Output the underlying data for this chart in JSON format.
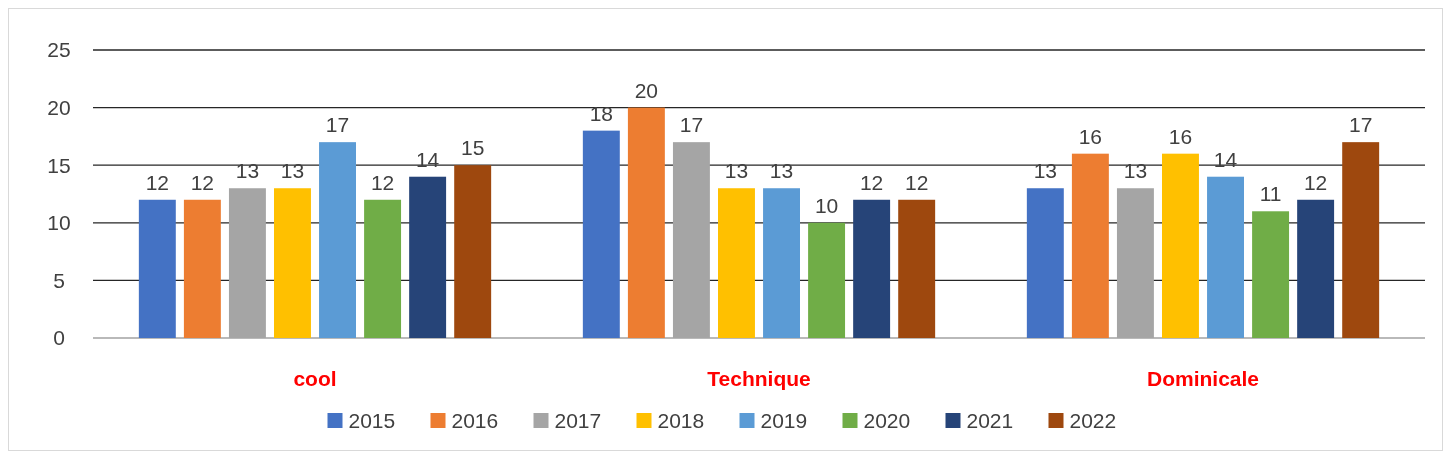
{
  "chart_data": {
    "type": "bar",
    "categories": [
      "cool",
      "Technique",
      "Dominicale"
    ],
    "series": [
      {
        "name": "2015",
        "color": "#4472c4",
        "values": [
          12,
          18,
          13
        ]
      },
      {
        "name": "2016",
        "color": "#ed7d31",
        "values": [
          12,
          20,
          16
        ]
      },
      {
        "name": "2017",
        "color": "#a5a5a5",
        "values": [
          13,
          17,
          13
        ]
      },
      {
        "name": "2018",
        "color": "#ffc000",
        "values": [
          13,
          13,
          16
        ]
      },
      {
        "name": "2019",
        "color": "#5b9bd5",
        "values": [
          17,
          13,
          14
        ]
      },
      {
        "name": "2020",
        "color": "#70ad47",
        "values": [
          12,
          10,
          11
        ]
      },
      {
        "name": "2021",
        "color": "#264478",
        "values": [
          14,
          12,
          12
        ]
      },
      {
        "name": "2022",
        "color": "#9e480e",
        "values": [
          15,
          12,
          17
        ]
      }
    ],
    "ylim": [
      0,
      25
    ],
    "yticks": [
      0,
      5,
      10,
      15,
      20,
      25
    ],
    "grid": "y",
    "legend": "bottom",
    "data_labels": true
  }
}
